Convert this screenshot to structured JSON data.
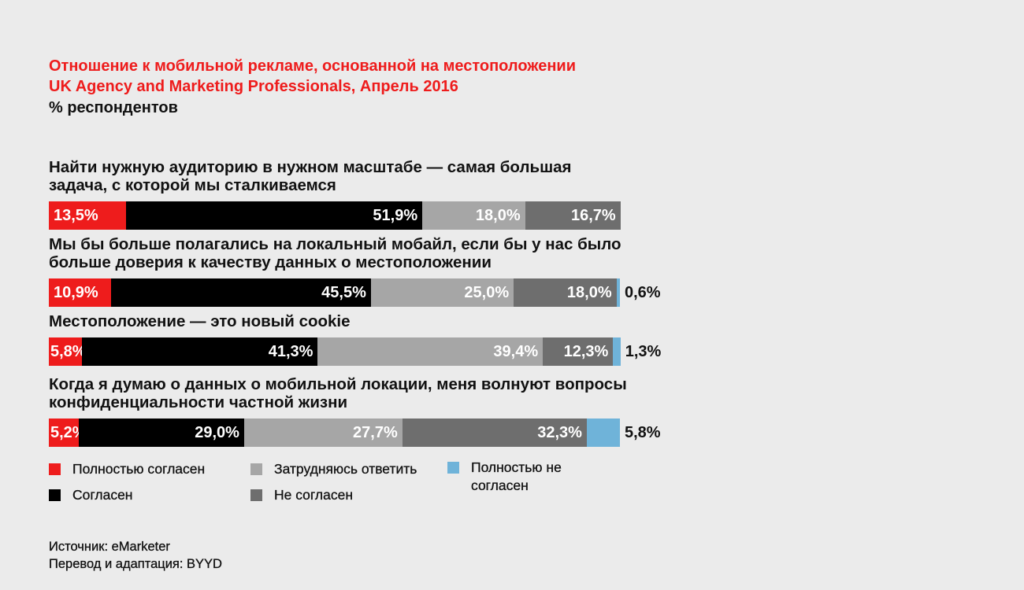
{
  "chart_data": {
    "type": "stacked-bar-horizontal",
    "title": "Отношение к мобильной рекламе, основанной на местоположении",
    "subtitle": "UK Agency and Marketing Professionals, Апрель 2016",
    "unit_label": "% респондентов",
    "categories": [
      "Найти нужную аудиторию в нужном масштабе — самая большая задача, с которой мы сталкиваемся",
      "Мы бы больше полагались на локальный мобайл, если бы у нас было больше доверия к качеству данных о местоположении",
      "Местоположение — это новый cookie",
      "Когда я думаю о данных о мобильной локации, меня волнуют вопросы конфиденциальности частной жизни"
    ],
    "series": [
      {
        "name": "Полностью согласен",
        "color": "#ee1c1c",
        "values": [
          13.5,
          10.9,
          5.8,
          5.2
        ],
        "value_labels": [
          "13,5%",
          "10,9%",
          "5,8%",
          "5,2%"
        ]
      },
      {
        "name": "Согласен",
        "color": "#000000",
        "values": [
          51.9,
          45.5,
          41.3,
          29.0
        ],
        "value_labels": [
          "51,9%",
          "45,5%",
          "41,3%",
          "29,0%"
        ]
      },
      {
        "name": "Затрудняюсь ответить",
        "color": "#a6a6a6",
        "values": [
          18.0,
          25.0,
          39.4,
          27.7
        ],
        "value_labels": [
          "18,0%",
          "25,0%",
          "39,4%",
          "27,7%"
        ]
      },
      {
        "name": "Не согласен",
        "color": "#6e6e6e",
        "values": [
          16.7,
          18.0,
          12.3,
          32.3
        ],
        "value_labels": [
          "16,7%",
          "18,0%",
          "12,3%",
          "32,3%"
        ]
      },
      {
        "name": "Полностью не согласен",
        "color": "#6fb3d9",
        "values": [
          null,
          0.6,
          1.3,
          5.8
        ],
        "value_labels": [
          null,
          "0,6%",
          "1,3%",
          "5,8%"
        ]
      }
    ],
    "source": [
      "Источник: eMarketer",
      "Перевод и адаптация: BYYD"
    ]
  }
}
